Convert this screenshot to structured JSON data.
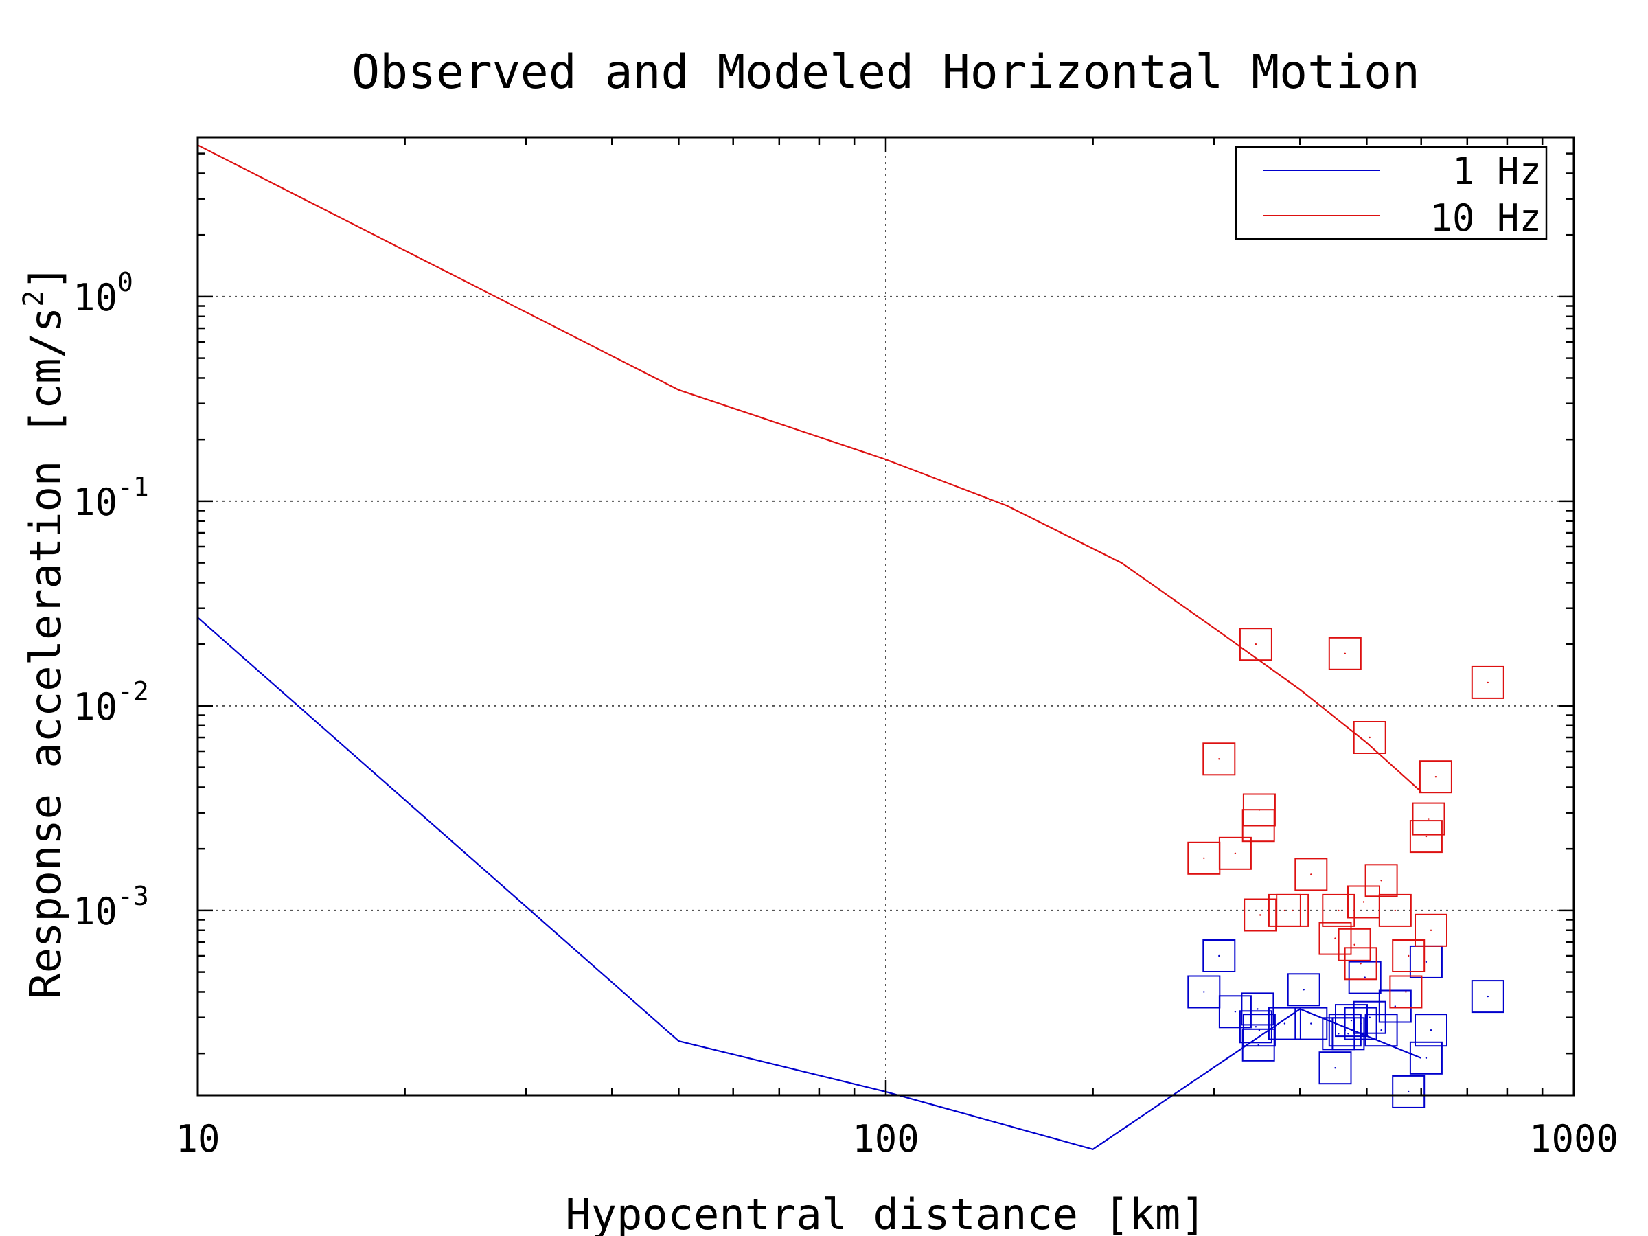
{
  "chart_data": {
    "type": "line",
    "title": "Observed and Modeled Horizontal Motion",
    "xlabel": "Hypocentral distance [km]",
    "ylabel": "Response acceleration [cm/s²]",
    "ylabel_parts": {
      "main": "Response acceleration [cm/s",
      "sup": "2",
      "end": "]"
    },
    "xscale": "log",
    "yscale": "log",
    "xlim": [
      10,
      1000
    ],
    "ylim": [
      0.000125,
      6.0
    ],
    "x_ticks": [
      {
        "value": 10,
        "label": "10"
      },
      {
        "value": 100,
        "label": "100"
      },
      {
        "value": 1000,
        "label": "1000"
      }
    ],
    "y_ticks": [
      {
        "value": 1,
        "base": "10",
        "exp": "0"
      },
      {
        "value": 0.1,
        "base": "10",
        "exp": "-1"
      },
      {
        "value": 0.01,
        "base": "10",
        "exp": "-2"
      },
      {
        "value": 0.001,
        "base": "10",
        "exp": "-3"
      }
    ],
    "grid": true,
    "legend_position": "top-right",
    "colors": {
      "1Hz": "#0000cc",
      "10Hz": "#dd1111",
      "grid": "#555555",
      "axis": "#000000"
    },
    "series": [
      {
        "name": "1 Hz",
        "color": "#0000cc",
        "x": [
          10,
          50,
          100,
          200,
          400,
          600
        ],
        "y": [
          0.027,
          0.00023,
          0.00013,
          6.8e-05,
          0.00033,
          0.00019
        ]
      },
      {
        "name": "10 Hz",
        "color": "#dd1111",
        "x": [
          10,
          50,
          100,
          150,
          220,
          300,
          400,
          500,
          600
        ],
        "y": [
          5.5,
          0.35,
          0.16,
          0.095,
          0.05,
          0.024,
          0.012,
          0.0066,
          0.0038
        ]
      }
    ],
    "observations": [
      {
        "series": "1 Hz",
        "color": "#0000cc",
        "x": [
          290,
          305,
          322,
          345,
          347,
          348,
          349,
          380,
          405,
          415,
          450,
          455,
          465,
          470,
          475,
          490,
          497,
          505,
          525,
          550,
          575,
          610,
          610,
          620,
          750
        ],
        "y": [
          0.0004,
          0.0006,
          0.00032,
          0.00027,
          0.00033,
          0.00022,
          0.00026,
          0.00028,
          0.00041,
          0.00028,
          0.00017,
          0.00025,
          0.00026,
          0.00025,
          0.00029,
          0.00028,
          0.00047,
          0.0003,
          0.00026,
          0.00034,
          0.00013,
          0.00056,
          0.00019,
          0.00026,
          0.00038
        ]
      },
      {
        "series": "10 Hz",
        "color": "#dd1111",
        "x": [
          290,
          305,
          322,
          345,
          348,
          349,
          350,
          380,
          390,
          415,
          450,
          455,
          465,
          480,
          490,
          495,
          505,
          525,
          550,
          570,
          575,
          610,
          615,
          620,
          630,
          750
        ],
        "y": [
          0.0018,
          0.0055,
          0.0019,
          0.02,
          0.0026,
          0.0031,
          0.00095,
          0.001,
          0.001,
          0.0015,
          0.00073,
          0.001,
          0.018,
          0.00068,
          0.00055,
          0.0011,
          0.007,
          0.0014,
          0.001,
          0.0004,
          0.0006,
          0.0023,
          0.0028,
          0.0008,
          0.0045,
          0.013
        ]
      }
    ]
  }
}
